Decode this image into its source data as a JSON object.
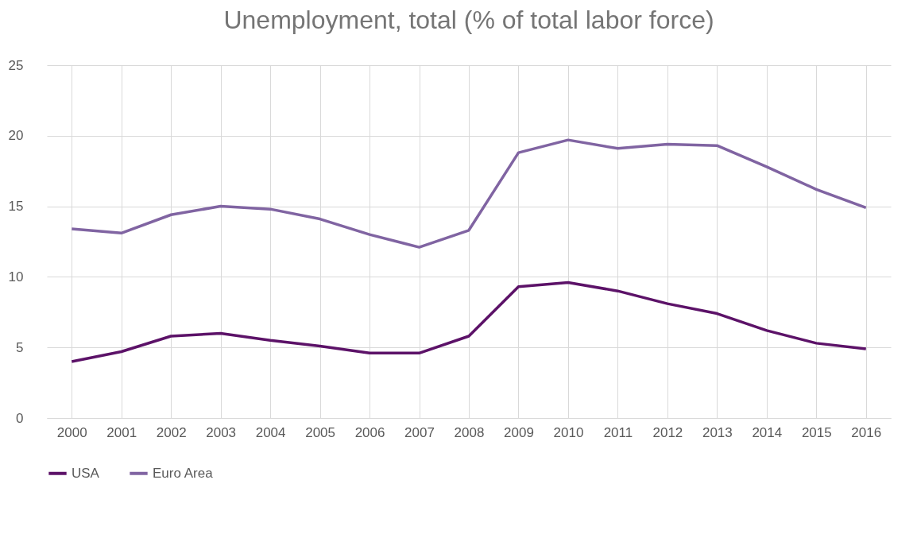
{
  "chart_data": {
    "type": "line",
    "title": "Unemployment, total (% of total labor force)",
    "categories": [
      "2000",
      "2001",
      "2002",
      "2003",
      "2004",
      "2005",
      "2006",
      "2007",
      "2008",
      "2009",
      "2010",
      "2011",
      "2012",
      "2013",
      "2014",
      "2015",
      "2016"
    ],
    "series": [
      {
        "name": "USA",
        "color": "#5c1268",
        "values": [
          4.0,
          4.7,
          5.8,
          6.0,
          5.5,
          5.1,
          4.6,
          4.6,
          5.8,
          9.3,
          9.6,
          9.0,
          8.1,
          7.4,
          6.2,
          5.3,
          4.9
        ]
      },
      {
        "name": "Euro Area",
        "color": "#8064a2",
        "values": [
          13.4,
          13.1,
          14.4,
          15.0,
          14.8,
          14.1,
          13.0,
          12.1,
          13.3,
          18.8,
          19.7,
          19.1,
          19.4,
          19.3,
          17.8,
          16.2,
          14.9
        ]
      }
    ],
    "ylim": [
      0,
      25
    ],
    "yticks": [
      0,
      5,
      10,
      15,
      20,
      25
    ],
    "grid": true,
    "legend": "bottom",
    "marker": "none",
    "line_style": "solid"
  }
}
